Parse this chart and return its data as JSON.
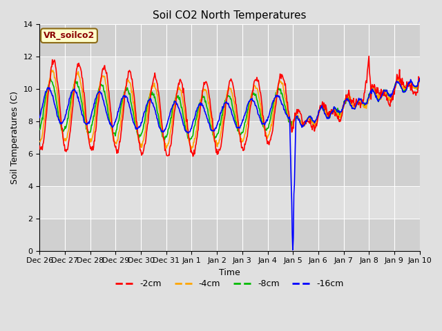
{
  "title": "Soil CO2 North Temperatures",
  "ylabel": "Soil Temperatures (C)",
  "xlabel": "Time",
  "annotation": "VR_soilco2",
  "ylim": [
    0,
    14
  ],
  "yticks": [
    0,
    2,
    4,
    6,
    8,
    10,
    12,
    14
  ],
  "colors": {
    "-2cm": "#ff0000",
    "-4cm": "#ffa500",
    "-8cm": "#00bb00",
    "-16cm": "#0000ff"
  },
  "tick_labels": [
    "Dec 26",
    "Dec 27",
    "Dec 28",
    "Dec 29",
    "Dec 30",
    "Dec 31",
    "Jan 1",
    "Jan 2",
    "Jan 3",
    "Jan 4",
    "Jan 5",
    "Jan 6",
    "Jan 7",
    "Jan 8",
    "Jan 9",
    "Jan 10"
  ],
  "figsize": [
    6.4,
    4.8
  ],
  "dpi": 100,
  "bg_color": "#e0e0e0",
  "grid_color": "#ffffff",
  "linewidth": 1.2,
  "title_fontsize": 11,
  "label_fontsize": 9,
  "tick_fontsize": 8,
  "legend_fontsize": 9
}
